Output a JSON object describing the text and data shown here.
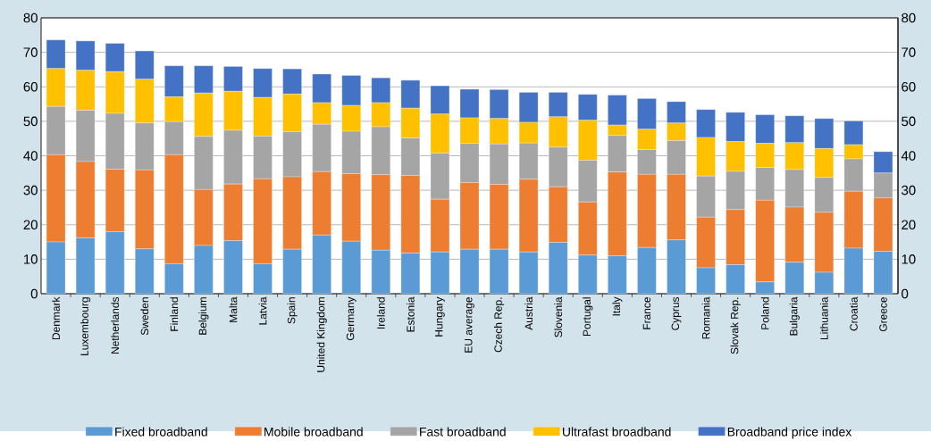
{
  "chart_data": {
    "type": "bar",
    "stacked": true,
    "categories": [
      "Denmark",
      "Luxembourg",
      "Netherlands",
      "Sweden",
      "Finland",
      "Belgium",
      "Malta",
      "Latvia",
      "Spain",
      "United Kingdom",
      "Germany",
      "Ireland",
      "Estonia",
      "Hungary",
      "EU average",
      "Czech Rep.",
      "Austria",
      "Slovenia",
      "Portugal",
      "Italy",
      "France",
      "Cyprus",
      "Romania",
      "Slovak Rep.",
      "Poland",
      "Bulgaria",
      "Lithuania",
      "Croatia",
      "Greece"
    ],
    "series": [
      {
        "name": "Fixed broadband",
        "color": "#5b9bd5",
        "values": [
          15,
          16.2,
          18,
          13,
          8.7,
          14,
          15.4,
          8.7,
          12.9,
          17,
          15.2,
          12.6,
          11.8,
          12.1,
          12.9,
          12.9,
          12.1,
          14.9,
          11.2,
          11,
          13.4,
          15.6,
          7.5,
          8.4,
          3.4,
          9.1,
          6.2,
          13.2,
          12.3
        ]
      },
      {
        "name": "Mobile broadband",
        "color": "#ed7d31",
        "values": [
          25.3,
          22.1,
          18.1,
          22.9,
          31.6,
          16.2,
          16.4,
          24.6,
          21,
          18.4,
          19.6,
          21.9,
          22.5,
          15.3,
          19.3,
          18.8,
          21.1,
          16.1,
          15.4,
          24.3,
          21.2,
          19,
          14.7,
          16,
          23.7,
          16,
          17.4,
          16.5,
          15.5
        ]
      },
      {
        "name": "Fast broadband",
        "color": "#a5a5a5",
        "values": [
          14,
          14.9,
          16.2,
          13.6,
          9.6,
          15.4,
          15.6,
          12.4,
          13.1,
          13.7,
          12.3,
          13.9,
          10.9,
          13.4,
          11.4,
          11.7,
          10.5,
          11.5,
          12.1,
          10.6,
          7.2,
          9.8,
          11.9,
          11.1,
          9.5,
          10.9,
          10.1,
          9.4,
          7.2
        ]
      },
      {
        "name": "Ultrafast broadband",
        "color": "#ffc000",
        "values": [
          11,
          11.6,
          12.1,
          12.7,
          7.2,
          12.6,
          11.3,
          11.2,
          10.9,
          6.3,
          7.5,
          7,
          8.6,
          11.3,
          7.4,
          7.4,
          6,
          8.8,
          11.6,
          3,
          5.9,
          5.1,
          11.2,
          8.6,
          7,
          7.8,
          8.4,
          4.1,
          0
        ]
      },
      {
        "name": "Broadband price index",
        "color": "#4472c4",
        "values": [
          8.3,
          8.5,
          8.2,
          8.2,
          9,
          7.9,
          7.2,
          8.4,
          7.3,
          8.3,
          8.7,
          7.2,
          8.1,
          8.2,
          8.3,
          8.4,
          8.7,
          7.1,
          7.5,
          8.7,
          8.9,
          6.2,
          8.1,
          8.5,
          8.3,
          7.8,
          8.7,
          6.9,
          6.2
        ]
      }
    ],
    "ylim": [
      0,
      80
    ],
    "yticks": [
      0,
      10,
      20,
      30,
      40,
      50,
      60,
      70,
      80
    ],
    "y2lim": [
      0,
      80
    ],
    "y2ticks": [
      0,
      10,
      20,
      30,
      40,
      50,
      60,
      70,
      80
    ],
    "grid": "y",
    "legend": "bottom"
  }
}
